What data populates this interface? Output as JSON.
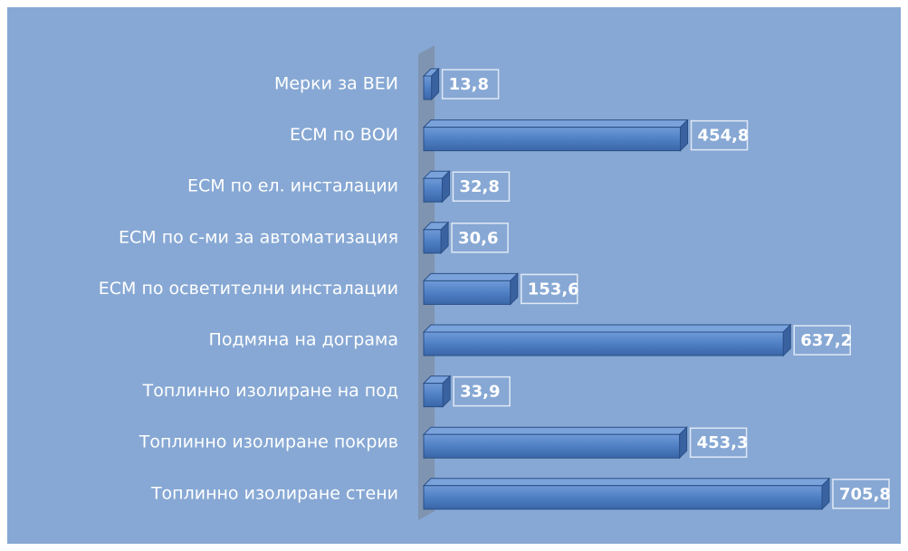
{
  "chart_data": {
    "type": "bar",
    "orientation": "horizontal",
    "categories": [
      "Мерки за ВЕИ",
      "ЕСМ по ВОИ",
      "ЕСМ по ел. инсталации",
      "ЕСМ по с-ми за автоматизация",
      "ЕСМ по осветителни инсталации",
      "Подмяна на дограма",
      "Топлинно изолиране на под",
      "Топлинно изолиране покрив",
      "Топлинно изолиране стени"
    ],
    "values": [
      13.8,
      454.8,
      32.8,
      30.6,
      153.6,
      637.2,
      33.9,
      453.3,
      705.8
    ],
    "value_labels": [
      "13,8",
      "454,8",
      "32,8",
      "30,6",
      "153,6",
      "637,2",
      "33,9",
      "453,3",
      "705,8"
    ],
    "color": "#4f7fc4"
  }
}
